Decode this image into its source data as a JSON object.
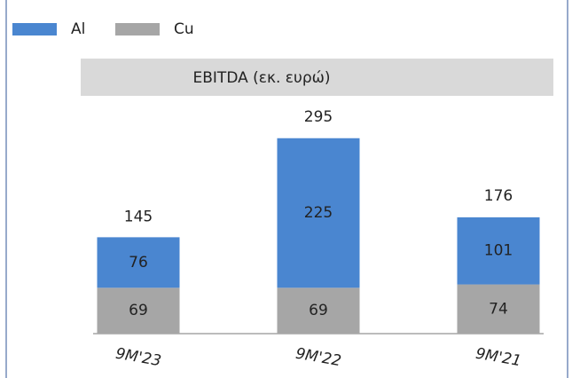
{
  "chart_data": {
    "type": "stacked_bar",
    "title": "EBITDA (εκ. ευρώ)",
    "categories": [
      "9M'23",
      "9M'22",
      "9M'21"
    ],
    "series": [
      {
        "name": "Cu",
        "color": "#a6a6a6",
        "values": [
          69,
          69,
          74
        ]
      },
      {
        "name": "Al",
        "color": "#4a86d0",
        "values": [
          76,
          225,
          101
        ]
      }
    ],
    "totals": [
      145,
      295,
      176
    ],
    "legend": "top-left"
  }
}
